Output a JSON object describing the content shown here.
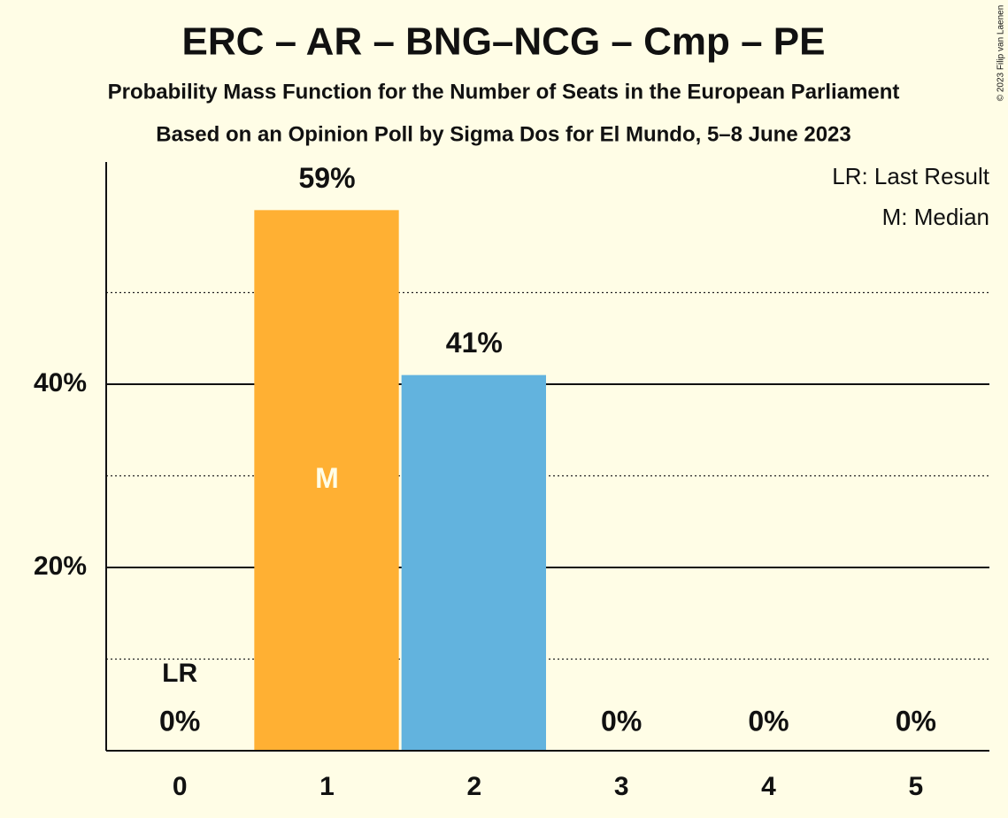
{
  "chart_data": {
    "type": "bar",
    "title": "ERC – AR – BNG–NCG – Cmp – PE",
    "subtitle": "Probability Mass Function for the Number of Seats in the European Parliament",
    "source": "Based on an Opinion Poll by Sigma Dos for El Mundo, 5–8 June 2023",
    "copyright": "© 2023 Filip van Laenen",
    "categories": [
      "0",
      "1",
      "2",
      "3",
      "4",
      "5"
    ],
    "values": [
      0,
      59,
      41,
      0,
      0,
      0
    ],
    "value_labels": [
      "0%",
      "59%",
      "41%",
      "0%",
      "0%",
      "0%"
    ],
    "color": "#62b3de",
    "median_color": "#ffb033",
    "median": 1,
    "median_label": "M",
    "last_result": 0,
    "last_result_label": "LR",
    "legend": [
      "LR: Last Result",
      "M: Median"
    ],
    "legend_position": "top-right",
    "ylim": [
      0,
      64
    ],
    "yticks": [
      {
        "value": 20,
        "label": "20%"
      },
      {
        "value": 40,
        "label": "40%"
      }
    ],
    "minor_yticks": [
      10,
      30,
      50
    ],
    "grid": true
  }
}
